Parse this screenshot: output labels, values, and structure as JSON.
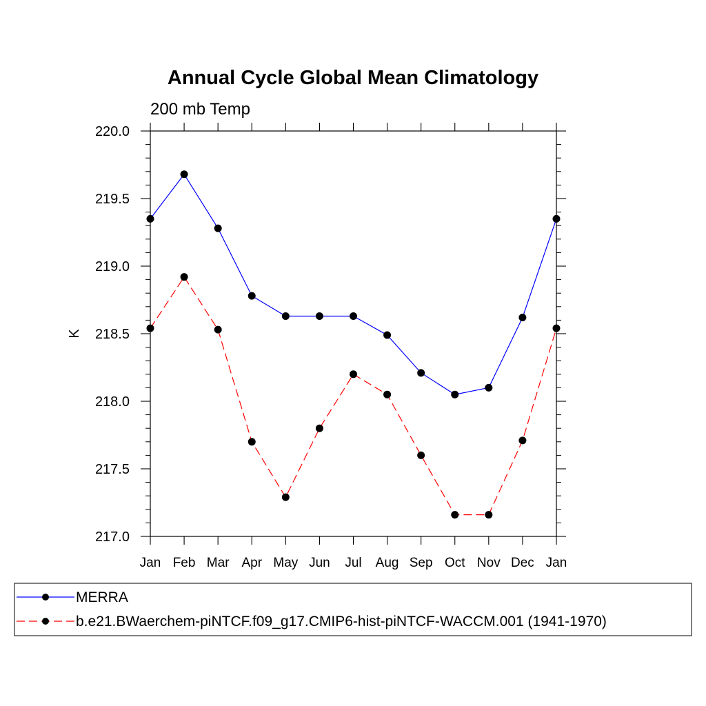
{
  "chart_data": {
    "type": "line",
    "title": "Annual Cycle Global Mean Climatology",
    "subtitle": "200 mb Temp",
    "xlabel": "",
    "ylabel": "K",
    "categories": [
      "Jan",
      "Feb",
      "Mar",
      "Apr",
      "May",
      "Jun",
      "Jul",
      "Aug",
      "Sep",
      "Oct",
      "Nov",
      "Dec",
      "Jan"
    ],
    "ylim": [
      217.0,
      220.0
    ],
    "yticks": [
      "217.0",
      "217.5",
      "218.0",
      "218.5",
      "219.0",
      "219.5",
      "220.0"
    ],
    "ytick_values": [
      217.0,
      217.5,
      218.0,
      218.5,
      219.0,
      219.5,
      220.0
    ],
    "grid": false,
    "legend_position": "bottom",
    "series": [
      {
        "name": "MERRA",
        "color": "#0000ff",
        "dash": "solid",
        "values": [
          219.35,
          219.68,
          219.28,
          218.78,
          218.63,
          218.63,
          218.63,
          218.49,
          218.21,
          218.05,
          218.1,
          218.62,
          219.35
        ]
      },
      {
        "name": "b.e21.BWaerchem-piNTCF.f09_g17.CMIP6-hist-piNTCF-WACCM.001 (1941-1970)",
        "color": "#ff0000",
        "dash": "dashed",
        "values": [
          218.54,
          218.92,
          218.53,
          217.7,
          217.29,
          217.8,
          218.2,
          218.05,
          217.6,
          217.16,
          217.16,
          217.71,
          218.54
        ]
      }
    ]
  }
}
